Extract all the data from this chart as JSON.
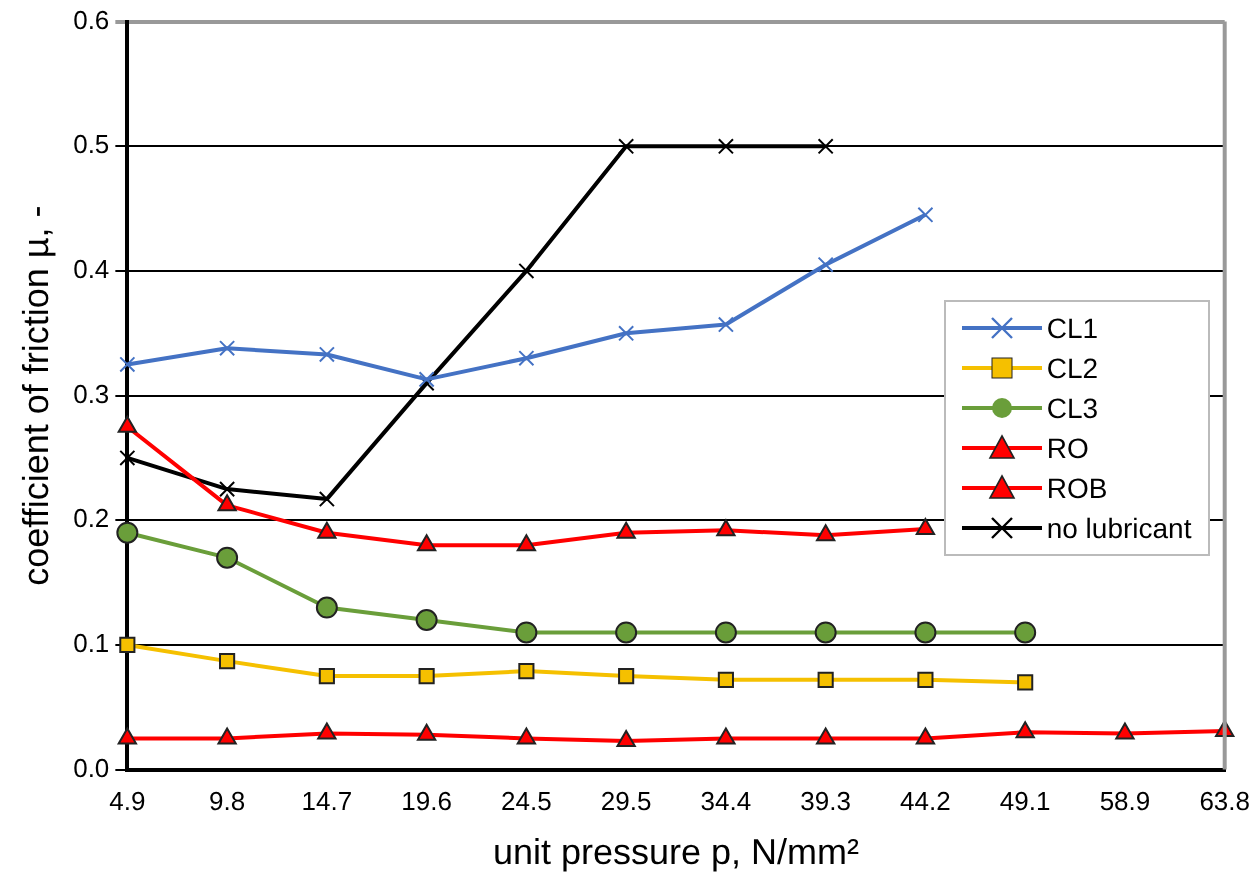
{
  "chart_data": {
    "type": "line",
    "xlabel": "unit pressure p, N/mm²",
    "ylabel": "coefficient of friction µ, -",
    "categories": [
      "4.9",
      "9.8",
      "14.7",
      "19.6",
      "24.5",
      "29.5",
      "34.4",
      "39.3",
      "44.2",
      "49.1",
      "58.9",
      "63.8"
    ],
    "series": [
      {
        "name": "CL1",
        "color": "#4472c4",
        "marker": "cross",
        "values": [
          0.325,
          0.338,
          0.333,
          0.313,
          0.33,
          0.35,
          0.357,
          0.405,
          0.445,
          null,
          null,
          null
        ]
      },
      {
        "name": "CL2",
        "color": "#f5c000",
        "marker": "square",
        "values": [
          0.1,
          0.087,
          0.075,
          0.075,
          0.079,
          0.075,
          0.072,
          0.072,
          0.072,
          0.07,
          null,
          null
        ]
      },
      {
        "name": "CL3",
        "color": "#6a9e3a",
        "marker": "circle",
        "values": [
          0.19,
          0.17,
          0.13,
          0.12,
          0.11,
          0.11,
          0.11,
          0.11,
          0.11,
          0.11,
          null,
          null
        ]
      },
      {
        "name": "RO",
        "color": "#ff0000",
        "marker": "triangle",
        "values": [
          0.275,
          0.212,
          0.19,
          0.18,
          0.18,
          0.19,
          0.192,
          0.188,
          0.193,
          null,
          null,
          null
        ]
      },
      {
        "name": "ROB",
        "color": "#ff0000",
        "marker": "triangle",
        "values": [
          0.025,
          0.025,
          0.029,
          0.028,
          0.025,
          0.023,
          0.025,
          0.025,
          0.025,
          0.03,
          0.029,
          0.031
        ]
      },
      {
        "name": "no lubricant",
        "color": "#000000",
        "marker": "cross",
        "values": [
          0.25,
          0.225,
          0.217,
          0.31,
          0.4,
          0.5,
          0.5,
          0.5,
          null,
          null,
          null,
          null
        ]
      }
    ],
    "ylim": [
      0,
      0.6
    ],
    "yticks": [
      {
        "value": 0,
        "label": "0.0"
      },
      0.1,
      0.2,
      0.3,
      0.4,
      0.5,
      0.6
    ],
    "grid": "y",
    "legend": "right"
  }
}
